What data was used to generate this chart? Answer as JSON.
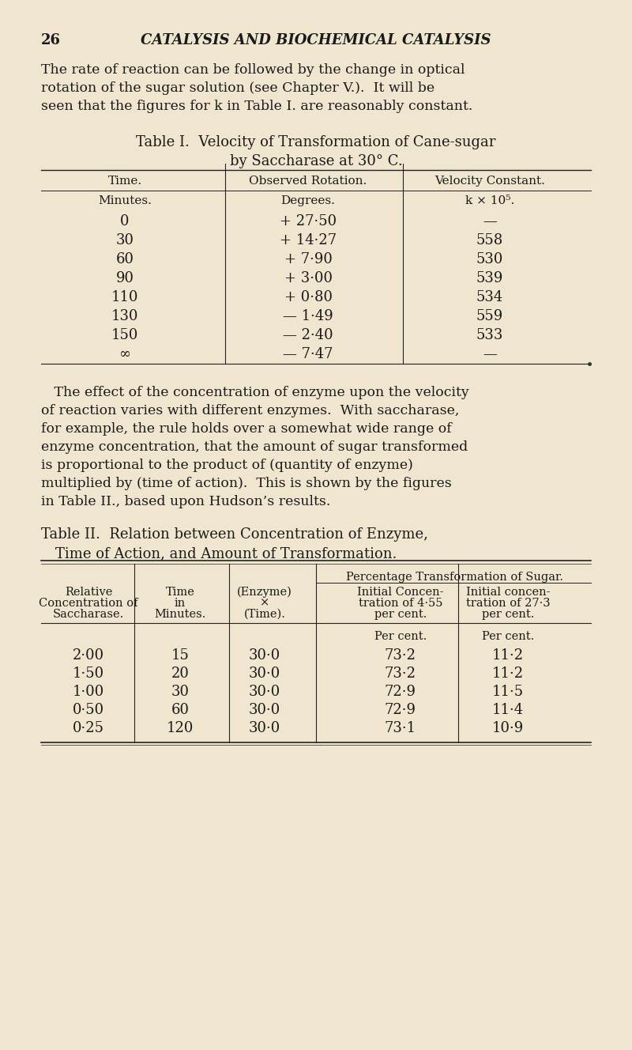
{
  "bg_color": "#f0e6d0",
  "text_color": "#1a1a1a",
  "page_num": "26",
  "header": "CATALYSIS AND BIOCHEMICAL CATALYSIS",
  "para1_lines": [
    "The rate of reaction can be followed by the change in optical",
    "rotation of the sugar solution (see Chapter V.).  It will be",
    "seen that the figures for k in Table I. are reasonably constant."
  ],
  "table1_title_line1": "Table I.  Velocity of Transformation of Cane-sugar",
  "table1_title_line2": "by Saccharase at 30° C.",
  "table1_col_headers": [
    "Time.",
    "Observed Rotation.",
    "Velocity Constant."
  ],
  "table1_sub_headers": [
    "Minutes.",
    "Degrees.",
    "k × 10⁵."
  ],
  "table1_data": [
    [
      "0",
      "+ 27·50",
      "—"
    ],
    [
      "30",
      "+ 14·27",
      "558"
    ],
    [
      "60",
      "+ 7·90",
      "530"
    ],
    [
      "90",
      "+ 3·00",
      "539"
    ],
    [
      "110",
      "+ 0·80",
      "534"
    ],
    [
      "130",
      "— 1·49",
      "559"
    ],
    [
      "150",
      "— 2·40",
      "533"
    ],
    [
      "∞",
      "— 7·47",
      "—"
    ]
  ],
  "para2_lines": [
    "   The effect of the concentration of enzyme upon the velocity",
    "of reaction varies with different enzymes.  With saccharase,",
    "for example, the rule holds over a somewhat wide range of",
    "enzyme concentration, that the amount of sugar transformed",
    "is proportional to the product of (quantity of enzyme)",
    "multiplied by (time of action).  This is shown by the figures",
    "in Table II., based upon Hudson’s results."
  ],
  "table2_title_line1": "Table II.  Relation between Concentration of Enzyme,",
  "table2_title_line2": "Time of Action, and Amount of Transformation.",
  "table2_col_headers_sub1": "Initial Concen-\ntration of 4·55\nper cent.",
  "table2_col_headers_sub2": "Initial concen-\ntration of 27·3\nper cent.",
  "table2_data": [
    [
      "2·00",
      "15",
      "30·0",
      "73·2",
      "11·2"
    ],
    [
      "1·50",
      "20",
      "30·0",
      "73·2",
      "11·2"
    ],
    [
      "1·00",
      "30",
      "30·0",
      "72·9",
      "11·5"
    ],
    [
      "0·50",
      "60",
      "30·0",
      "72·9",
      "11·4"
    ],
    [
      "0·25",
      "120",
      "30·0",
      "73·1",
      "10·9"
    ]
  ]
}
